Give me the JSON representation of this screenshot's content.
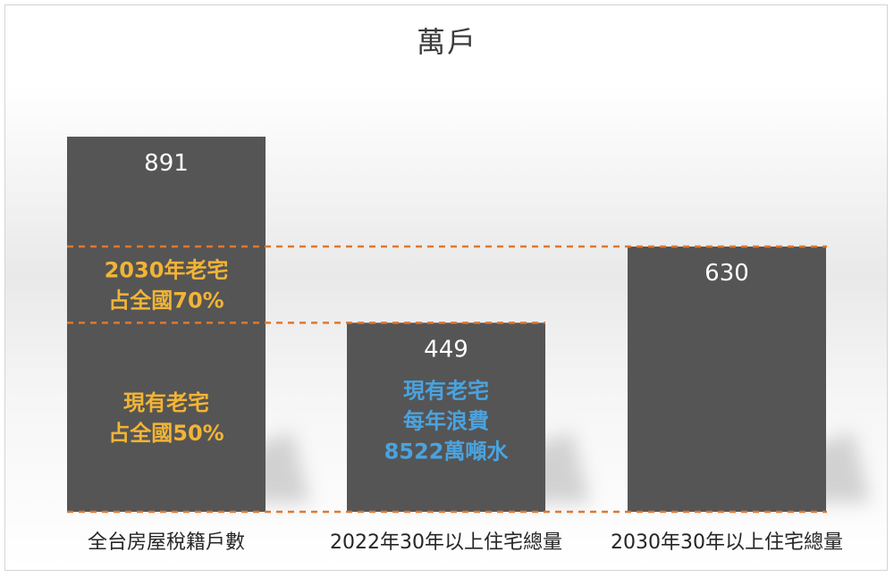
{
  "chart_data": {
    "type": "bar",
    "title": "萬戶",
    "categories": [
      "全台房屋稅籍戶數",
      "2022年30年以上住宅總量",
      "2030年30年以上住宅總量"
    ],
    "values": [
      891,
      449,
      630
    ],
    "ylim": [
      0,
      891
    ],
    "grid": false,
    "legend": "none",
    "reference_lines": [
      {
        "value": 630,
        "color": "#e0782e"
      },
      {
        "value": 449,
        "color": "#e0782e"
      },
      {
        "value": 0,
        "color": "#e0782e"
      }
    ],
    "annotations": [
      {
        "bar": 0,
        "band": [
          449,
          630
        ],
        "lines": [
          "2030年老宅",
          "占全國70%"
        ],
        "color": "#f2b436"
      },
      {
        "bar": 0,
        "band": [
          0,
          449
        ],
        "lines": [
          "現有老宅",
          "占全國50%"
        ],
        "color": "#f2b436"
      },
      {
        "bar": 1,
        "band": [
          0,
          449
        ],
        "lines": [
          "現有老宅",
          "每年浪費",
          "8522萬噸水"
        ],
        "color": "#4aa3df"
      }
    ],
    "colors": {
      "bar": "#555555",
      "bar_value": "#ffffff",
      "shadow": "#c8c8c8"
    }
  }
}
